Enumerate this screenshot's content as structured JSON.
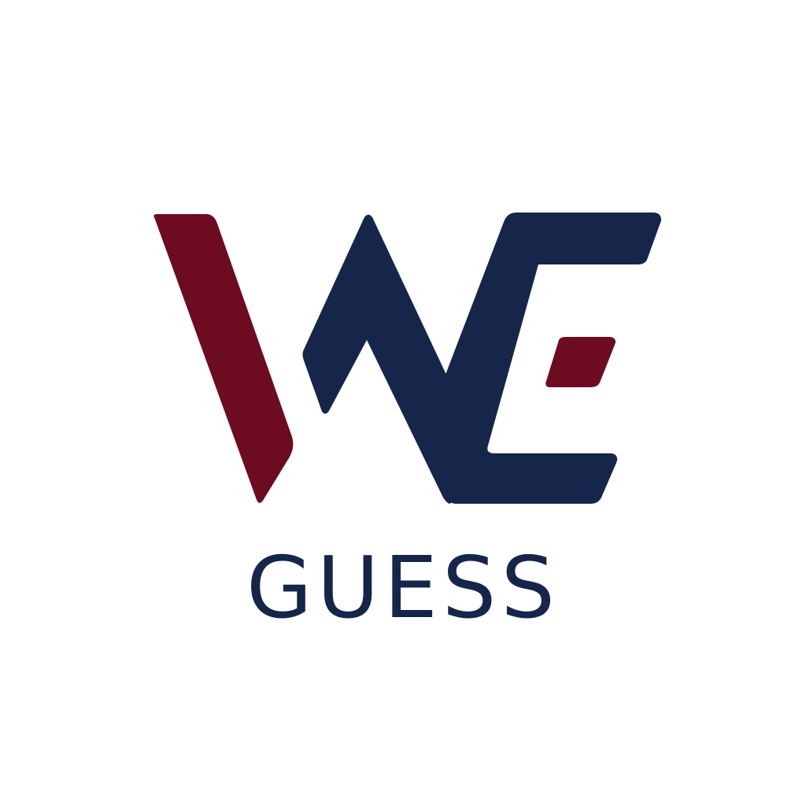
{
  "brand": {
    "name": "GUESS",
    "colors": {
      "navy": "#15264a",
      "maroon": "#6d0b21",
      "background": "#ffffff"
    },
    "mark_icon": "we-monogram-icon"
  }
}
